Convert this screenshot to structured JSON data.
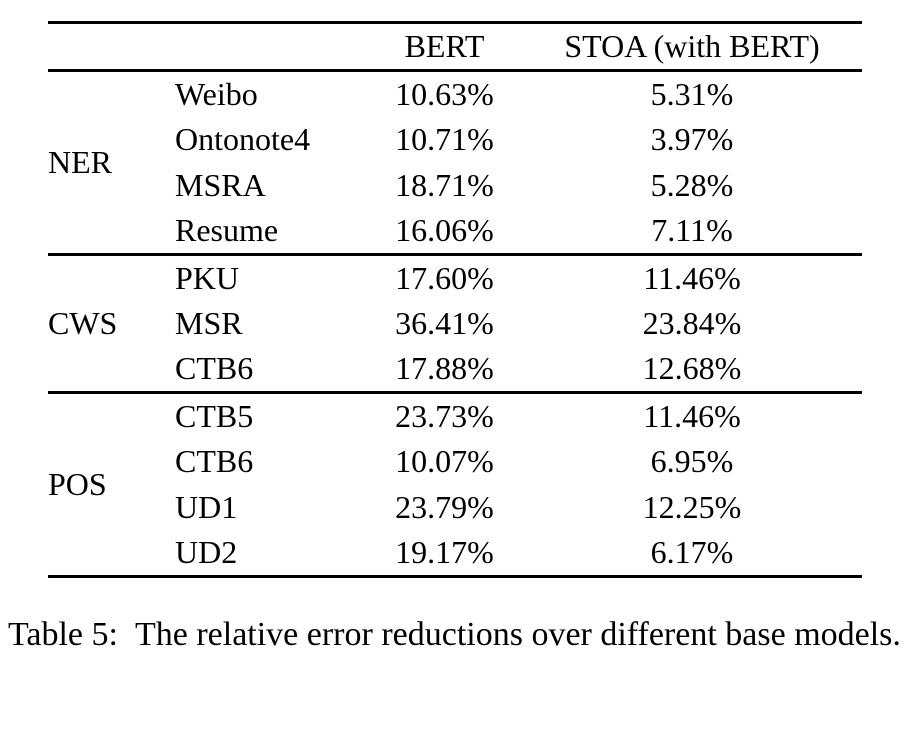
{
  "table": {
    "header": {
      "col_group": "",
      "col_dataset": "",
      "col_bert": "BERT",
      "col_stoa": "STOA (with BERT)"
    },
    "groups": [
      {
        "label": "NER",
        "rows": [
          {
            "dataset": "Weibo",
            "bert": "10.63%",
            "stoa": "5.31%"
          },
          {
            "dataset": "Ontonote4",
            "bert": "10.71%",
            "stoa": "3.97%"
          },
          {
            "dataset": "MSRA",
            "bert": "18.71%",
            "stoa": "5.28%"
          },
          {
            "dataset": "Resume",
            "bert": "16.06%",
            "stoa": "7.11%"
          }
        ]
      },
      {
        "label": "CWS",
        "rows": [
          {
            "dataset": "PKU",
            "bert": "17.60%",
            "stoa": "11.46%"
          },
          {
            "dataset": "MSR",
            "bert": "36.41%",
            "stoa": "23.84%"
          },
          {
            "dataset": "CTB6",
            "bert": "17.88%",
            "stoa": "12.68%"
          }
        ]
      },
      {
        "label": "POS",
        "rows": [
          {
            "dataset": "CTB5",
            "bert": "23.73%",
            "stoa": "11.46%"
          },
          {
            "dataset": "CTB6",
            "bert": "10.07%",
            "stoa": "6.95%"
          },
          {
            "dataset": "UD1",
            "bert": "23.79%",
            "stoa": "12.25%"
          },
          {
            "dataset": "UD2",
            "bert": "19.17%",
            "stoa": "6.17%"
          }
        ]
      }
    ]
  },
  "caption": {
    "label": "Table 5:",
    "text": "The relative error reductions over different base models."
  }
}
